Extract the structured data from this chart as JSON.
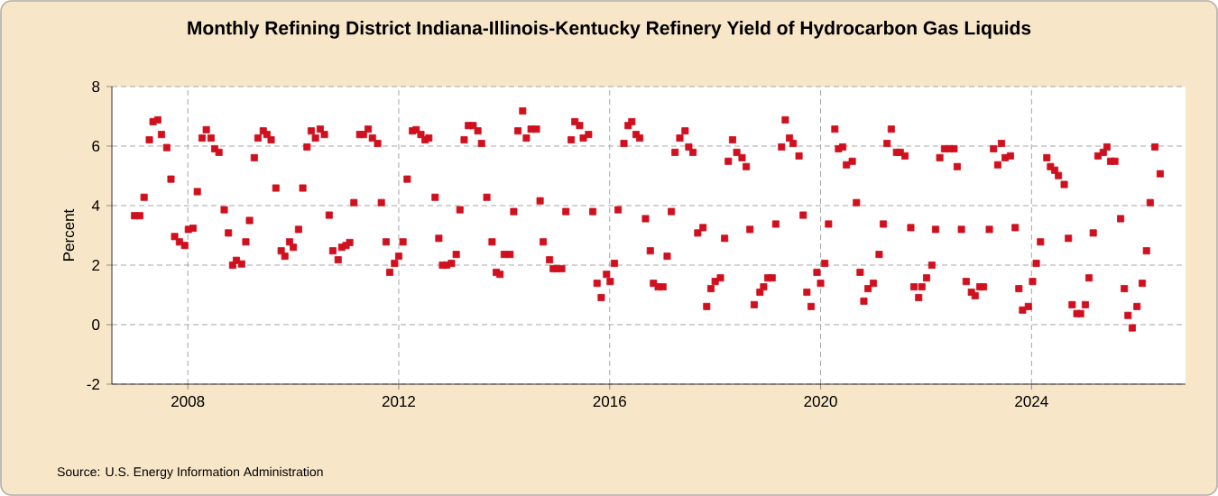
{
  "chart_data": {
    "type": "scatter",
    "title": "Monthly Refining District Indiana-Illinois-Kentucky Refinery Yield of Hydrocarbon Gas Liquids",
    "ylabel": "Percent",
    "annotations": [
      "Source: U.S. Energy Information Administration"
    ],
    "marker": "square",
    "grid": true,
    "xlim": [
      2006.56,
      2026.92
    ],
    "xticks": [
      2008,
      2012,
      2016,
      2020,
      2024
    ],
    "ylim": [
      -2,
      8
    ],
    "yticks": [
      -2,
      0,
      2,
      4,
      6,
      8
    ],
    "series": [
      {
        "color": "#d0101e",
        "x": [
          2006.99,
          2007.09,
          2007.17,
          2007.27,
          2007.34,
          2007.43,
          2007.5,
          2007.6,
          2007.68,
          2007.75,
          2007.84,
          2007.94,
          2008.01,
          2008.1,
          2008.18,
          2008.27,
          2008.35,
          2008.44,
          2008.51,
          2008.59,
          2008.69,
          2008.77,
          2008.85,
          2008.92,
          2009.02,
          2009.1,
          2009.17,
          2009.26,
          2009.33,
          2009.43,
          2009.5,
          2009.58,
          2009.67,
          2009.77,
          2009.84,
          2009.93,
          2010.0,
          2010.1,
          2010.18,
          2010.26,
          2010.34,
          2010.42,
          2010.51,
          2010.59,
          2010.68,
          2010.75,
          2010.85,
          2010.92,
          2011.0,
          2011.07,
          2011.15,
          2011.26,
          2011.33,
          2011.42,
          2011.5,
          2011.6,
          2011.67,
          2011.76,
          2011.83,
          2011.92,
          2012.0,
          2012.08,
          2012.16,
          2012.26,
          2012.33,
          2012.42,
          2012.5,
          2012.57,
          2012.69,
          2012.76,
          2012.83,
          2012.91,
          2013.0,
          2013.09,
          2013.16,
          2013.24,
          2013.32,
          2013.41,
          2013.5,
          2013.57,
          2013.67,
          2013.77,
          2013.85,
          2013.92,
          2014.0,
          2014.11,
          2014.18,
          2014.26,
          2014.35,
          2014.42,
          2014.51,
          2014.61,
          2014.68,
          2014.74,
          2014.86,
          2014.93,
          2015.0,
          2015.09,
          2015.17,
          2015.27,
          2015.34,
          2015.43,
          2015.5,
          2015.6,
          2015.68,
          2015.76,
          2015.84,
          2015.94,
          2016.01,
          2016.09,
          2016.16,
          2016.27,
          2016.35,
          2016.42,
          2016.5,
          2016.57,
          2016.68,
          2016.77,
          2016.83,
          2016.92,
          2017.01,
          2017.09,
          2017.17,
          2017.24,
          2017.33,
          2017.43,
          2017.5,
          2017.58,
          2017.67,
          2017.77,
          2017.84,
          2017.92,
          2018.0,
          2018.1,
          2018.18,
          2018.25,
          2018.33,
          2018.41,
          2018.51,
          2018.59,
          2018.66,
          2018.74,
          2018.85,
          2018.92,
          2019.0,
          2019.08,
          2019.15,
          2019.26,
          2019.33,
          2019.41,
          2019.48,
          2019.59,
          2019.67,
          2019.74,
          2019.82,
          2019.93,
          2020.0,
          2020.08,
          2020.15,
          2020.27,
          2020.34,
          2020.42,
          2020.49,
          2020.6,
          2020.68,
          2020.75,
          2020.82,
          2020.9,
          2021.0,
          2021.11,
          2021.19,
          2021.26,
          2021.34,
          2021.44,
          2021.51,
          2021.6,
          2021.71,
          2021.77,
          2021.86,
          2021.92,
          2022.01,
          2022.11,
          2022.18,
          2022.26,
          2022.35,
          2022.45,
          2022.53,
          2022.59,
          2022.67,
          2022.76,
          2022.86,
          2022.93,
          2023.02,
          2023.09,
          2023.2,
          2023.28,
          2023.36,
          2023.43,
          2023.5,
          2023.6,
          2023.69,
          2023.76,
          2023.83,
          2023.94,
          2024.02,
          2024.09,
          2024.17,
          2024.29,
          2024.36,
          2024.44,
          2024.51,
          2024.62,
          2024.7,
          2024.77,
          2024.86,
          2024.93,
          2025.02,
          2025.09,
          2025.17,
          2025.26,
          2025.36,
          2025.43,
          2025.5,
          2025.58,
          2025.69,
          2025.76,
          2025.83,
          2025.91,
          2026.0,
          2026.1,
          2026.18,
          2026.25,
          2026.34,
          2026.44
        ],
        "values": [
          3.66,
          3.66,
          4.28,
          6.21,
          6.82,
          6.88,
          6.39,
          5.95,
          4.89,
          2.96,
          2.78,
          2.66,
          3.2,
          3.24,
          4.47,
          6.27,
          6.55,
          6.27,
          5.91,
          5.79,
          3.86,
          3.08,
          2.0,
          2.16,
          2.04,
          2.78,
          3.5,
          5.61,
          6.27,
          6.51,
          6.39,
          6.21,
          4.59,
          2.48,
          2.3,
          2.78,
          2.6,
          3.2,
          4.59,
          5.97,
          6.51,
          6.27,
          6.57,
          6.39,
          3.68,
          2.48,
          2.18,
          2.6,
          2.66,
          2.76,
          4.1,
          6.39,
          6.39,
          6.57,
          6.27,
          6.09,
          4.1,
          2.78,
          1.76,
          2.06,
          2.3,
          2.78,
          4.89,
          6.51,
          6.55,
          6.39,
          6.21,
          6.27,
          4.28,
          2.9,
          2.0,
          2.0,
          2.06,
          2.36,
          3.86,
          6.21,
          6.69,
          6.69,
          6.51,
          6.09,
          4.28,
          2.78,
          1.76,
          1.69,
          2.36,
          2.36,
          3.8,
          6.51,
          7.18,
          6.27,
          6.57,
          6.57,
          4.16,
          2.78,
          2.18,
          1.88,
          1.88,
          1.88,
          3.8,
          6.21,
          6.82,
          6.69,
          6.27,
          6.39,
          3.8,
          1.39,
          0.91,
          1.69,
          1.45,
          2.06,
          3.86,
          6.09,
          6.69,
          6.82,
          6.39,
          6.27,
          3.56,
          2.48,
          1.39,
          1.27,
          1.27,
          2.3,
          3.8,
          5.79,
          6.27,
          6.51,
          5.97,
          5.79,
          3.08,
          3.26,
          0.61,
          1.21,
          1.45,
          1.57,
          2.9,
          5.49,
          6.21,
          5.79,
          5.61,
          5.31,
          3.2,
          0.67,
          1.09,
          1.27,
          1.57,
          1.57,
          3.38,
          5.97,
          6.88,
          6.27,
          6.09,
          5.67,
          3.68,
          1.09,
          0.61,
          1.76,
          1.39,
          2.06,
          3.38,
          6.57,
          5.91,
          5.97,
          5.37,
          5.49,
          4.1,
          1.76,
          0.79,
          1.21,
          1.39,
          2.36,
          3.38,
          6.09,
          6.57,
          5.79,
          5.79,
          5.67,
          3.26,
          1.27,
          0.91,
          1.27,
          1.57,
          2.0,
          3.2,
          5.61,
          5.91,
          5.91,
          5.91,
          5.31,
          3.2,
          1.45,
          1.09,
          0.97,
          1.27,
          1.27,
          3.2,
          5.91,
          5.37,
          6.09,
          5.61,
          5.67,
          3.26,
          1.21,
          0.49,
          0.61,
          1.45,
          2.06,
          2.78,
          5.61,
          5.31,
          5.19,
          5.01,
          4.71,
          2.9,
          0.67,
          0.37,
          0.37,
          0.67,
          1.57,
          3.08,
          5.67,
          5.79,
          5.97,
          5.49,
          5.49,
          3.56,
          1.21,
          0.31,
          -0.11,
          0.61,
          1.39,
          2.48,
          4.1,
          5.97,
          5.07
        ]
      }
    ]
  }
}
